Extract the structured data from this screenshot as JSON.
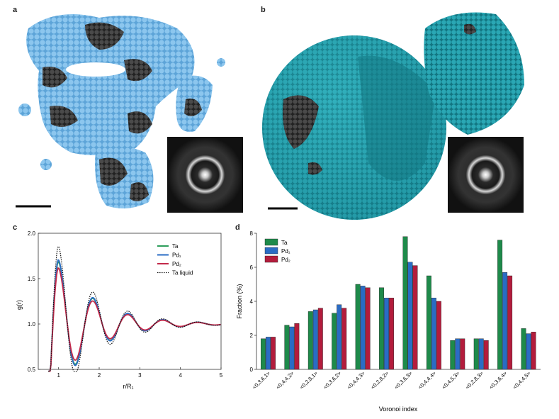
{
  "panels": {
    "a": "a",
    "b": "b",
    "c": "c",
    "d": "d"
  },
  "colors": {
    "light_blue": "#6fb3e6",
    "dark_gray": "#3b3b3b",
    "teal": "#1f9aa8",
    "ta_green": "#1e8a4a",
    "pd1_blue": "#2a6cc4",
    "pd2_red": "#b31c3c"
  },
  "chart_data": [
    {
      "type": "line",
      "title": "",
      "xlabel": "r/R₁",
      "ylabel": "g(r)",
      "xlim": [
        0.5,
        5
      ],
      "ylim": [
        0.5,
        2.0
      ],
      "x_ticks": [
        "1",
        "2",
        "3",
        "4",
        "5"
      ],
      "y_ticks": [
        "0.5",
        "1.0",
        "1.5",
        "2.0"
      ],
      "legend": "top-right",
      "series": [
        {
          "name": "Ta",
          "style": "solid",
          "color": "#2e9e5b",
          "peak": 1.69
        },
        {
          "name": "Pd₁",
          "style": "solid",
          "color": "#2a6cc4",
          "peak": 1.71
        },
        {
          "name": "Pd₂",
          "style": "solid",
          "color": "#c2294a",
          "peak": 1.62
        },
        {
          "name": "Ta liquid",
          "style": "dotted",
          "color": "#111111",
          "peak": 1.86
        }
      ]
    },
    {
      "type": "bar",
      "title": "",
      "xlabel": "Voronoi index",
      "ylabel": "Fraction (%)",
      "ylim": [
        0,
        8
      ],
      "y_ticks": [
        "0",
        "2",
        "4",
        "6",
        "8"
      ],
      "legend": "top-left",
      "categories": [
        "<0,3,6,1>",
        "<0,4,4,2>",
        "<0,2,8,1>",
        "<0,3,6,2>",
        "<0,4,4,3>",
        "<0,2,8,2>",
        "<0,3,6,3>",
        "<0,4,4,4>",
        "<0,4,5,3>",
        "<0,2,8,3>",
        "<0,3,6,4>",
        "<0,4,4,5>"
      ],
      "series": [
        {
          "name": "Ta",
          "values": [
            1.8,
            2.6,
            3.4,
            3.3,
            5.0,
            4.8,
            7.8,
            5.5,
            1.7,
            1.8,
            7.6,
            2.4
          ]
        },
        {
          "name": "Pd₁",
          "values": [
            1.9,
            2.5,
            3.5,
            3.8,
            4.9,
            4.2,
            6.3,
            4.2,
            1.8,
            1.8,
            5.7,
            2.1
          ]
        },
        {
          "name": "Pd₂",
          "values": [
            1.9,
            2.7,
            3.6,
            3.6,
            4.8,
            4.2,
            6.1,
            4.0,
            1.8,
            1.7,
            5.5,
            2.2
          ]
        }
      ]
    }
  ]
}
